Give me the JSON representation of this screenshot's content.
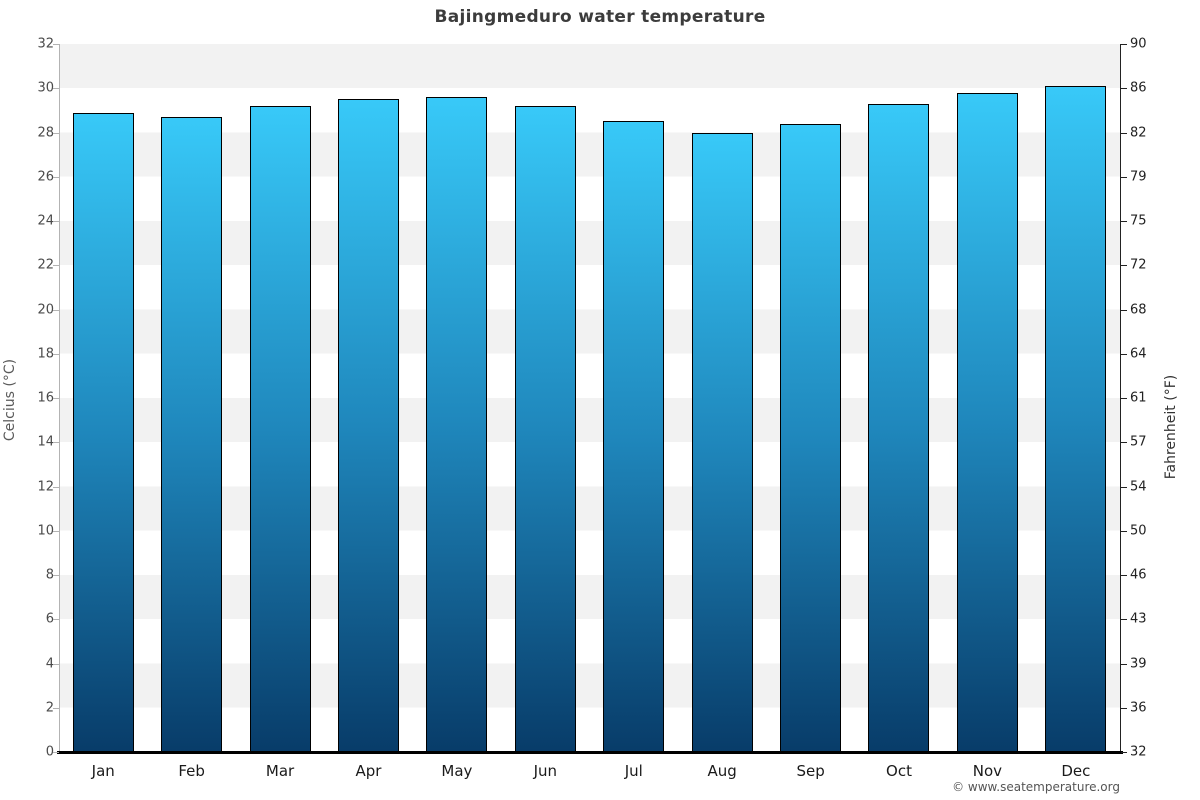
{
  "title": "Bajingmeduro water temperature",
  "footer_credit": "© www.seatemperature.org",
  "chart_data": {
    "type": "bar",
    "title": "Bajingmeduro water temperature",
    "categories": [
      "Jan",
      "Feb",
      "Mar",
      "Apr",
      "May",
      "Jun",
      "Jul",
      "Aug",
      "Sep",
      "Oct",
      "Nov",
      "Dec"
    ],
    "values": [
      28.9,
      28.7,
      29.2,
      29.5,
      29.6,
      29.2,
      28.5,
      28.0,
      28.4,
      29.3,
      29.8,
      30.1
    ],
    "value_unit": "°C",
    "ylabel_left": "Celcius (°C)",
    "ylabel_right": "Fahrenheit (°F)",
    "ylim_celsius": [
      0,
      32
    ],
    "yticks_celsius": [
      0,
      2,
      4,
      6,
      8,
      10,
      12,
      14,
      16,
      18,
      20,
      22,
      24,
      26,
      28,
      30,
      32
    ],
    "yticks_fahrenheit_labels": [
      32,
      36,
      39,
      43,
      46,
      50,
      54,
      57,
      61,
      64,
      68,
      72,
      75,
      79,
      82,
      86,
      90
    ],
    "grid": "alternating-horizontal-bands",
    "legend": "none",
    "colors": {
      "bar_gradient_top": "#38c9f8",
      "bar_gradient_mid": "#1f87bc",
      "bar_gradient_bottom": "#083c69",
      "bar_border": "#000000",
      "band_gray": "#f2f2f2",
      "band_white": "#ffffff",
      "title_text": "#3c3c3c",
      "axis_text": "#4a4a4a"
    }
  }
}
